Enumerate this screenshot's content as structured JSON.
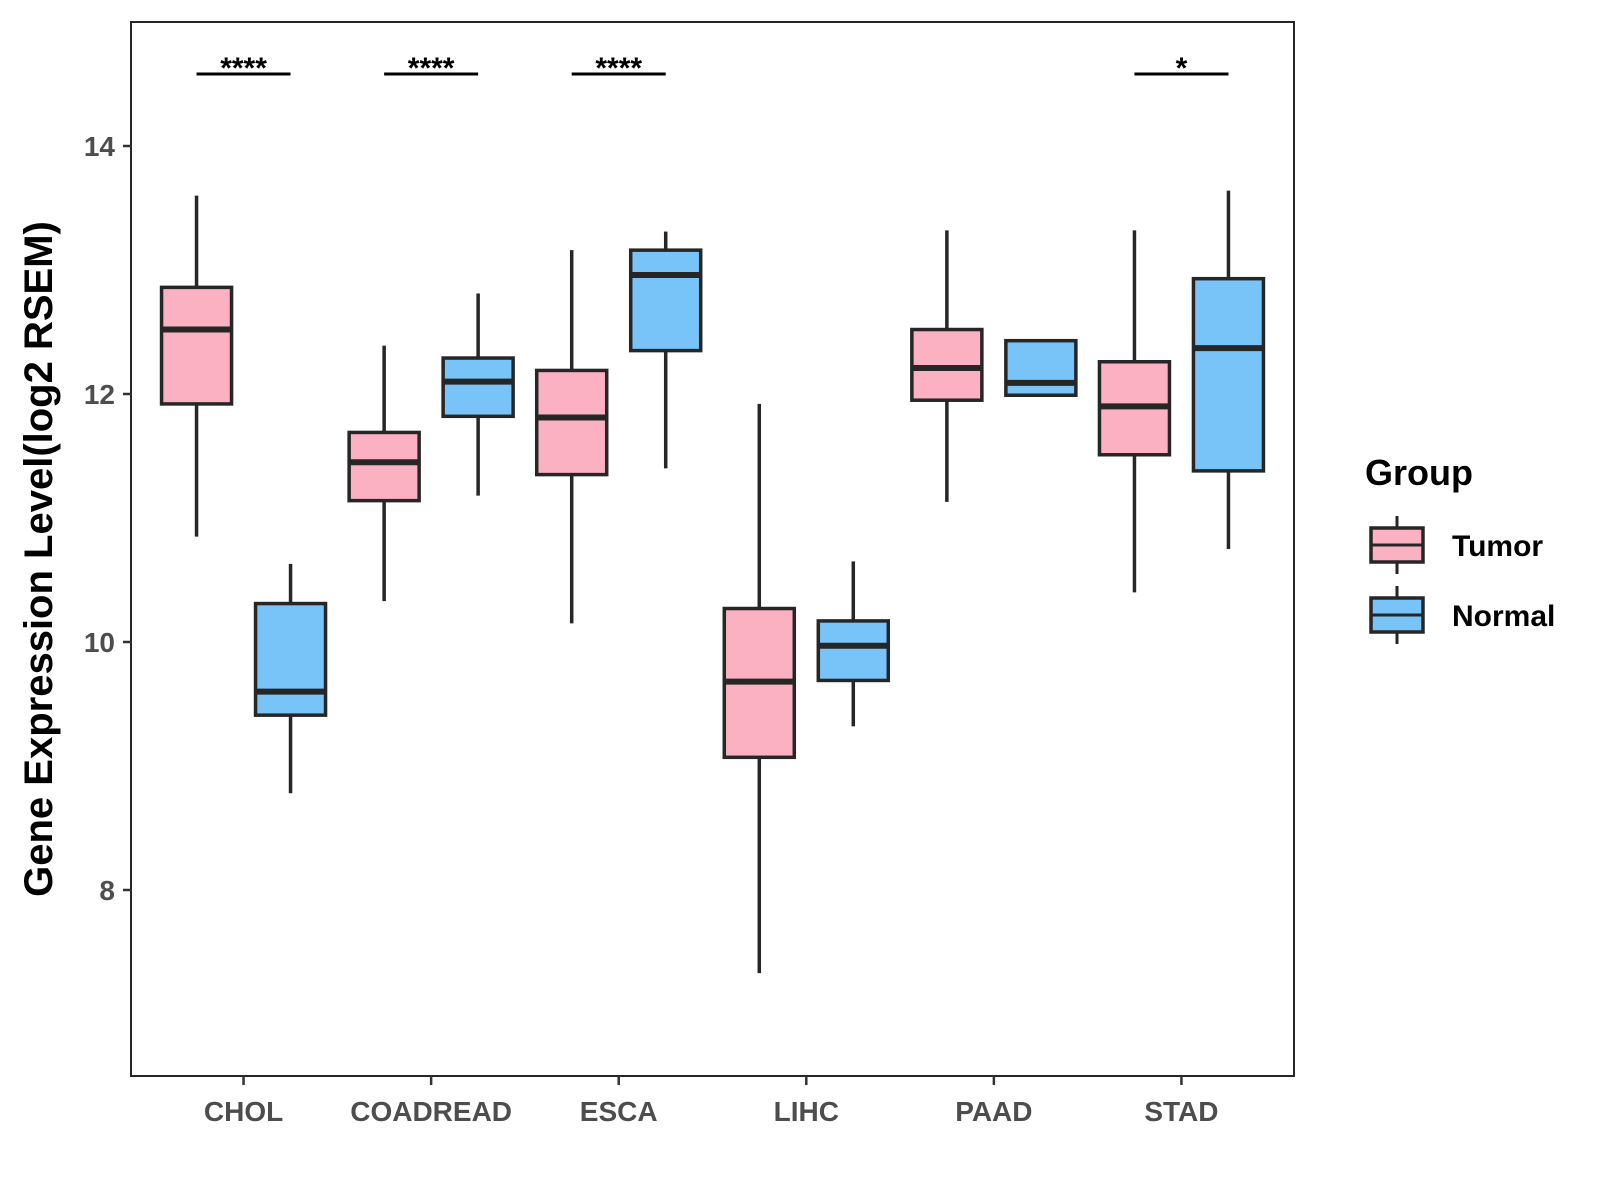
{
  "chart_data": {
    "type": "boxplot",
    "title": "",
    "xlabel": "",
    "ylabel": "Gene Expression Level(log2 RSEM)",
    "ylim": [
      6.5,
      15.0
    ],
    "yticks": [
      8,
      10,
      12,
      14
    ],
    "grid": false,
    "legend": {
      "title": "Group",
      "position": "right",
      "entries": [
        "Tumor",
        "Normal"
      ]
    },
    "colors": {
      "Tumor": "#FBB1C1",
      "Normal": "#78C3F8",
      "stroke": "#262626"
    },
    "categories": [
      "CHOL",
      "COADREAD",
      "ESCA",
      "LIHC",
      "PAAD",
      "STAD"
    ],
    "series": [
      {
        "name": "Tumor",
        "boxes": [
          {
            "whisker_low": 10.85,
            "q1": 11.92,
            "median": 12.52,
            "q3": 12.86,
            "whisker_high": 13.6
          },
          {
            "whisker_low": 10.33,
            "q1": 11.14,
            "median": 11.45,
            "q3": 11.69,
            "whisker_high": 12.39
          },
          {
            "whisker_low": 10.15,
            "q1": 11.35,
            "median": 11.81,
            "q3": 12.19,
            "whisker_high": 13.16
          },
          {
            "whisker_low": 7.33,
            "q1": 9.07,
            "median": 9.68,
            "q3": 10.27,
            "whisker_high": 11.92
          },
          {
            "whisker_low": 11.13,
            "q1": 11.95,
            "median": 12.21,
            "q3": 12.52,
            "whisker_high": 13.32
          },
          {
            "whisker_low": 10.4,
            "q1": 11.51,
            "median": 11.9,
            "q3": 12.26,
            "whisker_high": 13.32
          }
        ]
      },
      {
        "name": "Normal",
        "boxes": [
          {
            "whisker_low": 8.78,
            "q1": 9.41,
            "median": 9.6,
            "q3": 10.31,
            "whisker_high": 10.63
          },
          {
            "whisker_low": 11.18,
            "q1": 11.82,
            "median": 12.1,
            "q3": 12.29,
            "whisker_high": 12.81
          },
          {
            "whisker_low": 11.4,
            "q1": 12.35,
            "median": 12.96,
            "q3": 13.16,
            "whisker_high": 13.31
          },
          {
            "whisker_low": 9.32,
            "q1": 9.69,
            "median": 9.97,
            "q3": 10.17,
            "whisker_high": 10.65
          },
          {
            "whisker_low": 11.99,
            "q1": 11.99,
            "median": 12.09,
            "q3": 12.43,
            "whisker_high": 12.43
          },
          {
            "whisker_low": 10.75,
            "q1": 11.38,
            "median": 12.37,
            "q3": 12.93,
            "whisker_high": 13.64
          }
        ]
      }
    ],
    "significance": [
      {
        "category": "CHOL",
        "label": "****"
      },
      {
        "category": "COADREAD",
        "label": "****"
      },
      {
        "category": "ESCA",
        "label": "****"
      },
      {
        "category": "LIHC",
        "label": ""
      },
      {
        "category": "PAAD",
        "label": ""
      },
      {
        "category": "STAD",
        "label": "*"
      }
    ]
  }
}
